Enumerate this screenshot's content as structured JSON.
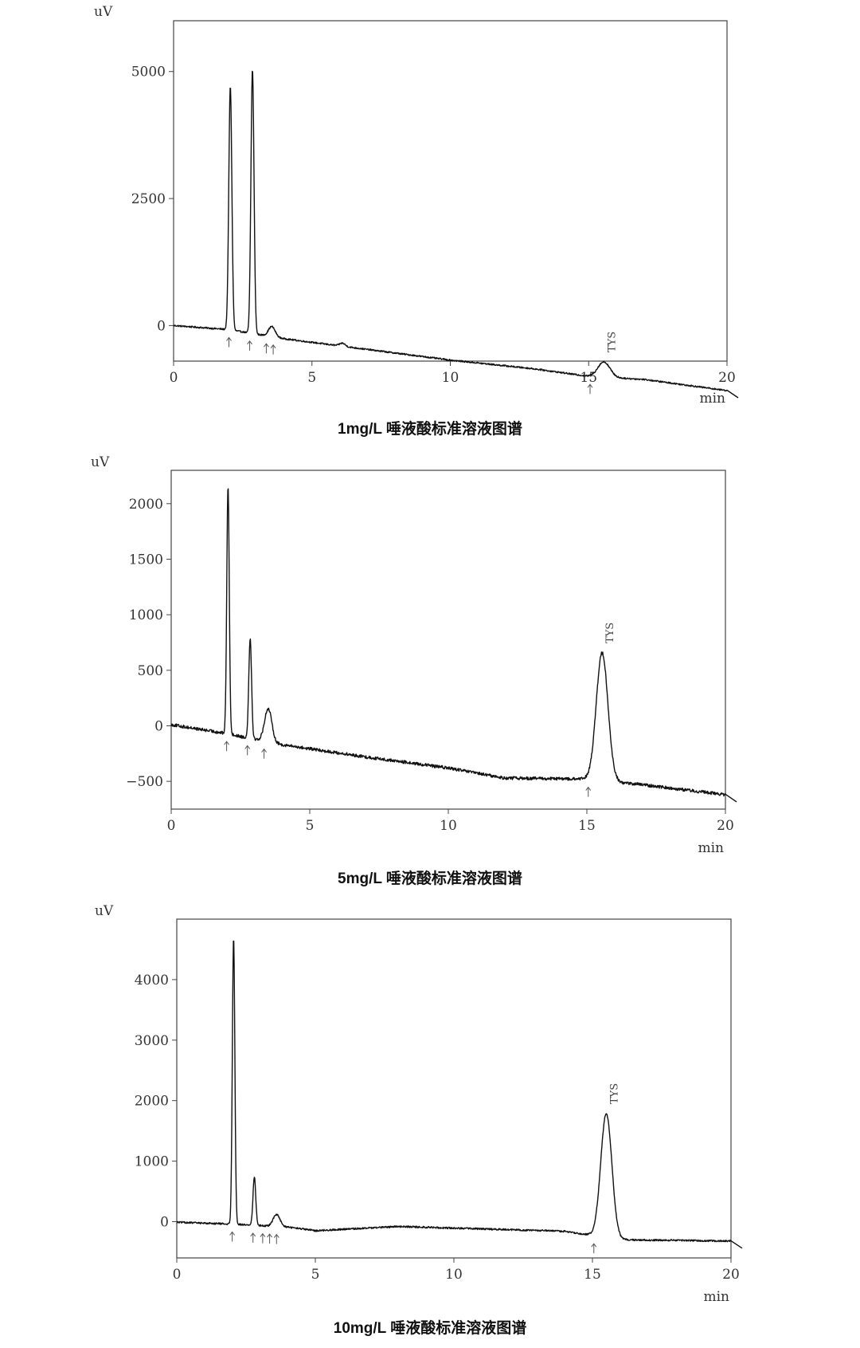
{
  "chart_data": [
    {
      "type": "line",
      "caption": "1mg/L 唾液酸标准溶液图谱",
      "xlabel": "min",
      "ylabel": "uV",
      "xlim": [
        0,
        20
      ],
      "ylim": [
        -700,
        6000
      ],
      "x_ticks": [
        0,
        5,
        10,
        15,
        20
      ],
      "y_ticks": [
        0,
        2500,
        5000
      ],
      "baseline": [
        [
          0,
          0
        ],
        [
          2,
          -80
        ],
        [
          4,
          -260
        ],
        [
          6,
          -400
        ],
        [
          10,
          -680
        ],
        [
          13,
          -850
        ],
        [
          15,
          -1000
        ],
        [
          17,
          -1060
        ],
        [
          20,
          -1280
        ]
      ],
      "peaks": [
        {
          "t": 2.05,
          "height": 4800,
          "width": 0.055
        },
        {
          "t": 2.85,
          "height": 5200,
          "width": 0.055
        },
        {
          "t": 3.55,
          "height": 200,
          "width": 0.12
        },
        {
          "t": 6.1,
          "height": 60,
          "width": 0.1
        },
        {
          "t": 15.55,
          "height": 300,
          "width": 0.22
        }
      ],
      "noise": 15,
      "markers": [
        2.0,
        2.75,
        3.35,
        3.6,
        15.05
      ],
      "peak_label": {
        "text": "TYS",
        "t": 15.55
      },
      "grid": false
    },
    {
      "type": "line",
      "caption": "5mg/L 唾液酸标准溶液图谱",
      "xlabel": "min",
      "ylabel": "uV",
      "xlim": [
        0,
        20
      ],
      "ylim": [
        -750,
        2300
      ],
      "x_ticks": [
        0,
        5,
        10,
        15,
        20
      ],
      "y_ticks": [
        -500,
        0,
        500,
        1000,
        1500,
        2000
      ],
      "baseline": [
        [
          0,
          10
        ],
        [
          2,
          -70
        ],
        [
          4,
          -170
        ],
        [
          7,
          -280
        ],
        [
          10,
          -380
        ],
        [
          12,
          -470
        ],
        [
          15,
          -480
        ],
        [
          17,
          -530
        ],
        [
          20,
          -620
        ]
      ],
      "peaks": [
        {
          "t": 2.05,
          "height": 2230,
          "width": 0.045
        },
        {
          "t": 2.85,
          "height": 900,
          "width": 0.05
        },
        {
          "t": 3.5,
          "height": 300,
          "width": 0.13
        },
        {
          "t": 15.55,
          "height": 1150,
          "width": 0.21
        }
      ],
      "noise": 14,
      "markers": [
        2.0,
        2.75,
        3.35,
        15.05
      ],
      "peak_label": {
        "text": "TYS",
        "t": 15.55
      },
      "grid": false
    },
    {
      "type": "line",
      "caption": "10mg/L 唾液酸标准溶液图谱",
      "xlabel": "min",
      "ylabel": "uV",
      "xlim": [
        0,
        20
      ],
      "ylim": [
        -600,
        5000
      ],
      "x_ticks": [
        0,
        5,
        10,
        15,
        20
      ],
      "y_ticks": [
        0,
        1000,
        2000,
        3000,
        4000
      ],
      "baseline": [
        [
          0,
          -10
        ],
        [
          2,
          -40
        ],
        [
          4,
          -90
        ],
        [
          5,
          -150
        ],
        [
          8,
          -80
        ],
        [
          11,
          -120
        ],
        [
          14,
          -160
        ],
        [
          16,
          -300
        ],
        [
          20,
          -320
        ]
      ],
      "peaks": [
        {
          "t": 2.05,
          "height": 4750,
          "width": 0.045
        },
        {
          "t": 2.8,
          "height": 800,
          "width": 0.05
        },
        {
          "t": 3.6,
          "height": 200,
          "width": 0.12
        },
        {
          "t": 15.5,
          "height": 2050,
          "width": 0.2
        }
      ],
      "noise": 14,
      "markers": [
        2.0,
        2.75,
        3.1,
        3.35,
        3.6,
        15.05
      ],
      "peak_label": {
        "text": "TYS",
        "t": 15.5
      },
      "grid": false
    }
  ]
}
